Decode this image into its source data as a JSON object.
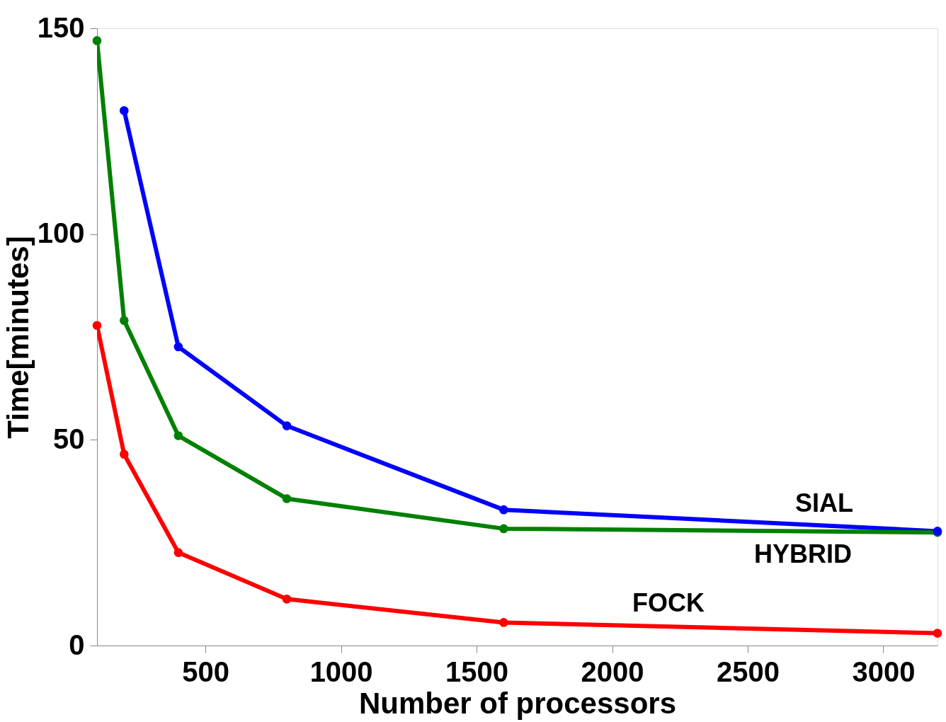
{
  "chart_data": {
    "type": "line",
    "xlabel": "Number of processors",
    "ylabel": "Time[minutes]",
    "xlim": [
      100,
      3200
    ],
    "xticks": [
      500,
      1000,
      1500,
      2000,
      2500,
      3000
    ],
    "ylim": [
      0,
      150
    ],
    "yticks": [
      0,
      50,
      100,
      150
    ],
    "grid": false,
    "legend": false,
    "marker": "circle",
    "line_style": "solid",
    "series": [
      {
        "name": "SIAL",
        "color": "#0000ff",
        "x": [
          200,
          400,
          800,
          1600,
          3200
        ],
        "values": [
          130,
          72.6,
          53.4,
          33,
          27.8
        ]
      },
      {
        "name": "HYBRID",
        "color": "#008000",
        "x": [
          100,
          200,
          400,
          800,
          1600,
          3200
        ],
        "values": [
          147,
          79,
          51,
          35.7,
          28.4,
          27.5
        ]
      },
      {
        "name": "FOCK",
        "color": "#ff0000",
        "x": [
          100,
          200,
          400,
          800,
          1600,
          3200
        ],
        "values": [
          77.8,
          46.5,
          22.6,
          11.3,
          5.6,
          3
        ]
      }
    ]
  }
}
